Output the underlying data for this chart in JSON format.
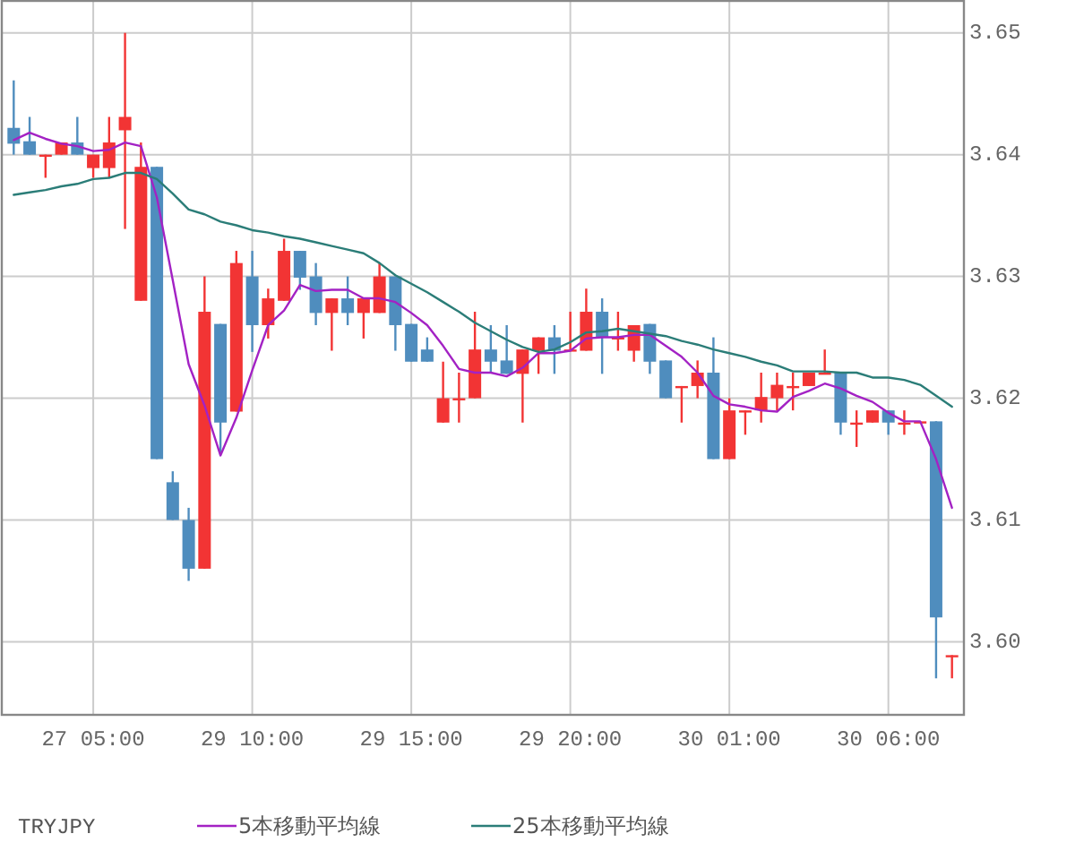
{
  "chart_data": {
    "type": "candlestick",
    "categories": [
      null,
      null,
      null,
      null,
      null,
      "27  05:00",
      null,
      null,
      null,
      null,
      null,
      null,
      null,
      null,
      null,
      "29  10:00",
      null,
      null,
      null,
      null,
      null,
      null,
      null,
      null,
      null,
      "29  15:00",
      null,
      null,
      null,
      null,
      null,
      null,
      null,
      null,
      null,
      "29  20:00",
      null,
      null,
      null,
      null,
      null,
      null,
      null,
      null,
      null,
      "30  01:00",
      null,
      null,
      null,
      null,
      null,
      null,
      null,
      null,
      null,
      "30  06:00",
      null,
      null,
      null,
      null
    ],
    "ohlc": [
      [
        3.6422,
        3.6461,
        3.64,
        3.6409
      ],
      [
        3.6411,
        3.6431,
        3.64,
        3.64
      ],
      [
        3.64,
        3.64,
        3.6381,
        3.64
      ],
      [
        3.64,
        3.641,
        3.64,
        3.641
      ],
      [
        3.641,
        3.6431,
        3.64,
        3.64
      ],
      [
        3.6389,
        3.64,
        3.6381,
        3.64
      ],
      [
        3.6389,
        3.6431,
        3.6381,
        3.641
      ],
      [
        3.642,
        3.65,
        3.6339,
        3.6431
      ],
      [
        3.628,
        3.641,
        3.628,
        3.639
      ],
      [
        3.639,
        3.639,
        3.615,
        3.615
      ],
      [
        3.6131,
        3.614,
        3.61,
        3.61
      ],
      [
        3.61,
        3.611,
        3.605,
        3.606
      ],
      [
        3.606,
        3.63,
        3.606,
        3.6271
      ],
      [
        3.6261,
        3.6261,
        3.6154,
        3.618
      ],
      [
        3.6189,
        3.6321,
        3.6189,
        3.6311
      ],
      [
        3.63,
        3.6321,
        3.6238,
        3.626
      ],
      [
        3.626,
        3.629,
        3.6249,
        3.6282
      ],
      [
        3.628,
        3.6331,
        3.628,
        3.6321
      ],
      [
        3.6321,
        3.6321,
        3.6289,
        3.6299
      ],
      [
        3.63,
        3.6311,
        3.626,
        3.627
      ],
      [
        3.627,
        3.6282,
        3.6239,
        3.6282
      ],
      [
        3.6282,
        3.63,
        3.626,
        3.627
      ],
      [
        3.627,
        3.6282,
        3.6249,
        3.6282
      ],
      [
        3.627,
        3.6311,
        3.627,
        3.63
      ],
      [
        3.63,
        3.63,
        3.6239,
        3.626
      ],
      [
        3.6261,
        3.6261,
        3.623,
        3.623
      ],
      [
        3.624,
        3.625,
        3.623,
        3.623
      ],
      [
        3.618,
        3.623,
        3.618,
        3.62
      ],
      [
        3.62,
        3.6221,
        3.618,
        3.62
      ],
      [
        3.62,
        3.6271,
        3.62,
        3.624
      ],
      [
        3.624,
        3.626,
        3.6221,
        3.623
      ],
      [
        3.6231,
        3.626,
        3.622,
        3.622
      ],
      [
        3.622,
        3.624,
        3.618,
        3.624
      ],
      [
        3.6239,
        3.625,
        3.622,
        3.625
      ],
      [
        3.625,
        3.626,
        3.622,
        3.6239
      ],
      [
        3.624,
        3.6271,
        3.624,
        3.624
      ],
      [
        3.6239,
        3.629,
        3.6239,
        3.6271
      ],
      [
        3.6271,
        3.6282,
        3.622,
        3.625
      ],
      [
        3.6249,
        3.6271,
        3.6239,
        3.625
      ],
      [
        3.6239,
        3.626,
        3.623,
        3.626
      ],
      [
        3.6261,
        3.6261,
        3.622,
        3.623
      ],
      [
        3.6231,
        3.6231,
        3.62,
        3.62
      ],
      [
        3.621,
        3.621,
        3.618,
        3.621
      ],
      [
        3.621,
        3.6231,
        3.62,
        3.6221
      ],
      [
        3.6221,
        3.625,
        3.615,
        3.615
      ],
      [
        3.615,
        3.62,
        3.615,
        3.619
      ],
      [
        3.6189,
        3.619,
        3.617,
        3.619
      ],
      [
        3.619,
        3.6221,
        3.618,
        3.6201
      ],
      [
        3.62,
        3.6221,
        3.619,
        3.6211
      ],
      [
        3.621,
        3.6221,
        3.619,
        3.621
      ],
      [
        3.621,
        3.6221,
        3.621,
        3.6221
      ],
      [
        3.6221,
        3.624,
        3.6221,
        3.6221
      ],
      [
        3.6221,
        3.6221,
        3.617,
        3.618
      ],
      [
        3.618,
        3.619,
        3.616,
        3.618
      ],
      [
        3.618,
        3.619,
        3.618,
        3.619
      ],
      [
        3.619,
        3.619,
        3.617,
        3.618
      ],
      [
        3.618,
        3.619,
        3.617,
        3.618
      ],
      [
        3.6181,
        3.6181,
        3.6181,
        3.6181
      ],
      [
        3.6181,
        3.6181,
        3.597,
        3.602
      ],
      [
        3.5989,
        3.5989,
        3.597,
        3.5989
      ]
    ],
    "colors": [
      "#4f8dbe",
      "#4f8dbe",
      "#f23434",
      "#f23434",
      "#4f8dbe",
      "#f23434",
      "#f23434",
      "#f23434",
      "#f23434",
      "#4f8dbe",
      "#4f8dbe",
      "#4f8dbe",
      "#f23434",
      "#4f8dbe",
      "#f23434",
      "#4f8dbe",
      "#f23434",
      "#f23434",
      "#4f8dbe",
      "#4f8dbe",
      "#f23434",
      "#4f8dbe",
      "#f23434",
      "#f23434",
      "#4f8dbe",
      "#4f8dbe",
      "#4f8dbe",
      "#f23434",
      "#f23434",
      "#f23434",
      "#4f8dbe",
      "#4f8dbe",
      "#f23434",
      "#f23434",
      "#4f8dbe",
      "#f23434",
      "#f23434",
      "#4f8dbe",
      "#f23434",
      "#f23434",
      "#4f8dbe",
      "#4f8dbe",
      "#f23434",
      "#f23434",
      "#4f8dbe",
      "#f23434",
      "#f23434",
      "#f23434",
      "#f23434",
      "#f23434",
      "#f23434",
      "#f23434",
      "#4f8dbe",
      "#f23434",
      "#f23434",
      "#4f8dbe",
      "#f23434",
      "#f23434",
      "#4f8dbe",
      "#f23434"
    ],
    "series": [
      {
        "type": "line",
        "name": "5本移動平均線",
        "color": "#a322c4",
        "values": [
          3.6412,
          3.6418,
          3.6413,
          3.6409,
          3.6407,
          3.6403,
          3.6404,
          3.641,
          3.6407,
          3.6365,
          3.6297,
          3.6228,
          3.6194,
          3.6153,
          3.6184,
          3.6223,
          3.626,
          3.6272,
          3.6293,
          3.6288,
          3.6289,
          3.6289,
          3.6282,
          3.6282,
          3.6279,
          3.627,
          3.626,
          3.6243,
          3.6224,
          3.6221,
          3.6221,
          3.6218,
          3.6225,
          3.6237,
          3.6237,
          3.6239,
          3.6249,
          3.625,
          3.625,
          3.6252,
          3.6252,
          3.6243,
          3.6234,
          3.6221,
          3.6202,
          3.6195,
          3.6193,
          3.619,
          3.6189,
          3.6201,
          3.6206,
          3.6212,
          3.6208,
          3.6202,
          3.6197,
          3.6188,
          3.6181,
          3.6181,
          3.615,
          3.611
        ]
      },
      {
        "type": "line",
        "name": "25本移動平均線",
        "color": "#2b7d78",
        "values": [
          3.6367,
          3.6369,
          3.6371,
          3.6374,
          3.6376,
          3.638,
          3.6381,
          3.6385,
          3.6385,
          3.638,
          3.6368,
          3.6355,
          3.6351,
          3.6345,
          3.6342,
          3.6338,
          3.6336,
          3.6333,
          3.6331,
          3.6328,
          3.6325,
          3.6322,
          3.6319,
          3.6311,
          3.6301,
          3.6294,
          3.6287,
          3.6279,
          3.6271,
          3.6262,
          3.6255,
          3.6248,
          3.6242,
          3.6238,
          3.624,
          3.6246,
          3.6254,
          3.6255,
          3.6257,
          3.6255,
          3.6253,
          3.6251,
          3.6247,
          3.6244,
          3.624,
          3.6237,
          3.6234,
          3.623,
          3.6227,
          3.6222,
          3.6222,
          3.6222,
          3.6221,
          3.6221,
          3.6217,
          3.6217,
          3.6215,
          3.6211,
          3.6202,
          3.6193
        ]
      }
    ],
    "ylim": [
      3.594,
      3.6527
    ],
    "yticks": [
      {
        "value": 3.6,
        "label": "3.60"
      },
      {
        "value": 3.61,
        "label": "3.61"
      },
      {
        "value": 3.62,
        "label": "3.62"
      },
      {
        "value": 3.63,
        "label": "3.63"
      },
      {
        "value": 3.64,
        "label": "3.64"
      },
      {
        "value": 3.65,
        "label": "3.65"
      }
    ],
    "grid": true,
    "legend": "bottom",
    "annotations": [
      "TRYJPY"
    ]
  }
}
